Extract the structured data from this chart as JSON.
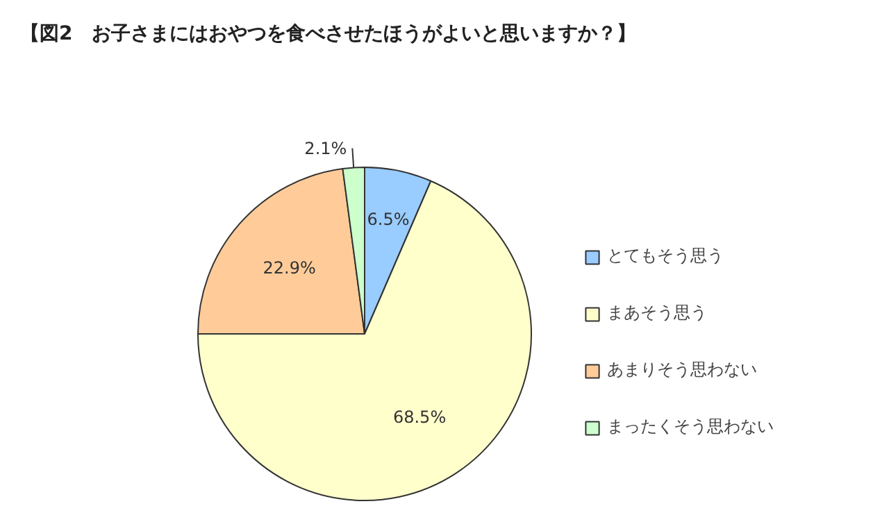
{
  "chart_data": {
    "type": "pie",
    "title": "【図2　お子さまにはおやつを食べさせたほうがよいと思いますか？】",
    "categories": [
      "とてもそう思う",
      "まあそう思う",
      "あまりそう思わない",
      "まったくそう思わない"
    ],
    "values": [
      6.5,
      68.5,
      22.9,
      2.1
    ],
    "colors": [
      "#99ccff",
      "#ffffcc",
      "#ffcc99",
      "#ccffcc"
    ],
    "value_labels": [
      "6.5%",
      "68.5%",
      "22.9%",
      "2.1%"
    ],
    "legend": "right"
  }
}
